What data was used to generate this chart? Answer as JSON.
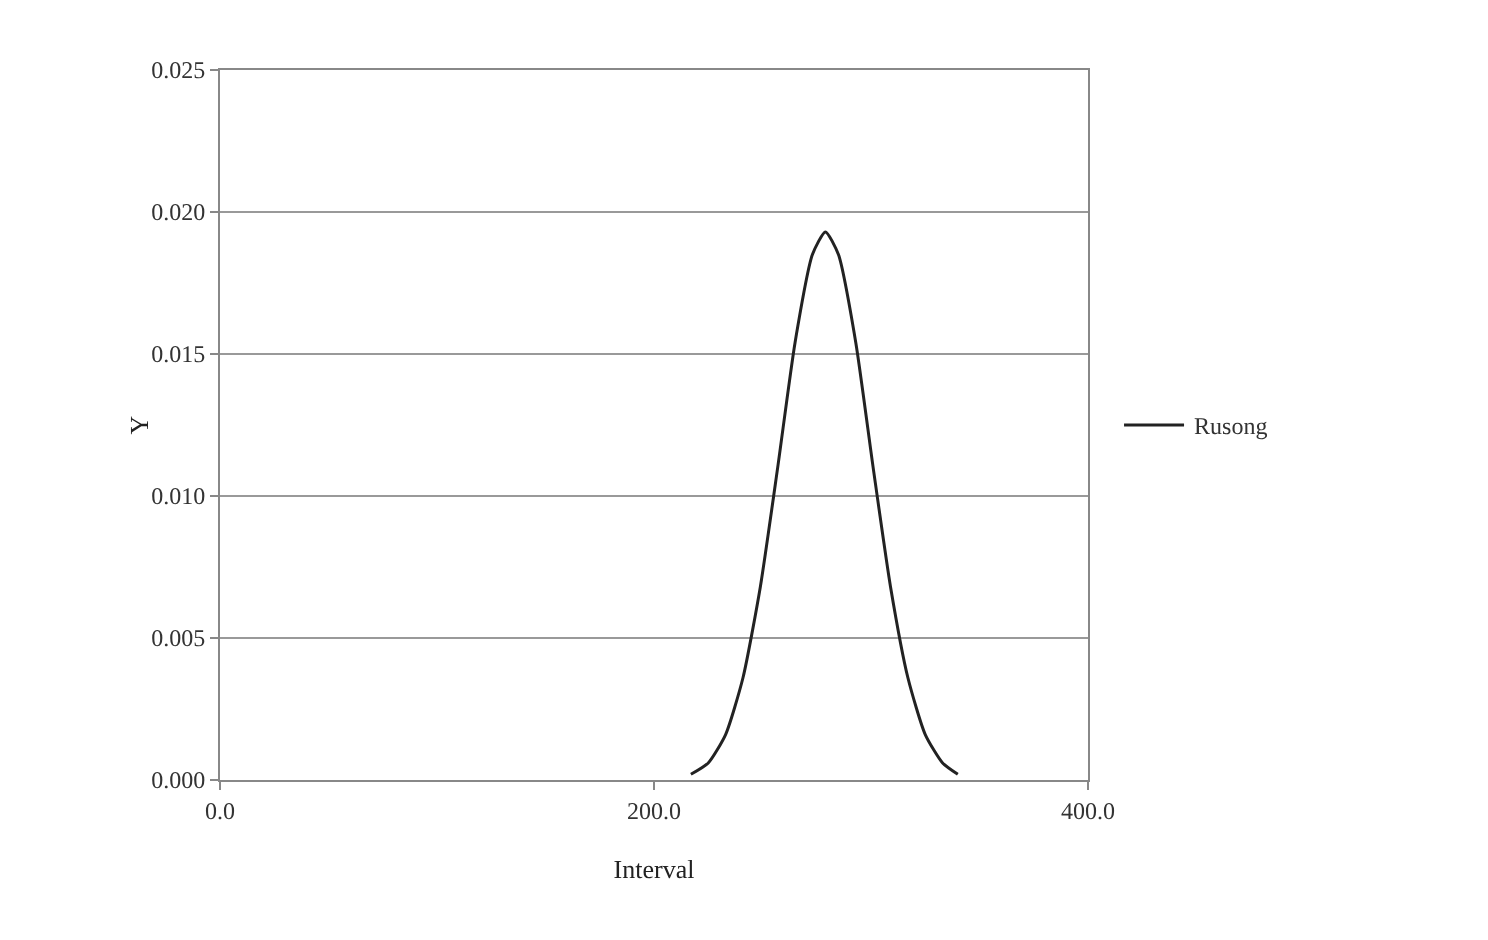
{
  "chart_data": {
    "type": "line",
    "xlabel": "Interval",
    "ylabel": "Y",
    "x": [
      217,
      225,
      233,
      241,
      249,
      257,
      265,
      273,
      279,
      285,
      293,
      301,
      309,
      317,
      325,
      333,
      340
    ],
    "series": [
      {
        "name": "Rusong",
        "color": "#222222",
        "values": [
          0.0002,
          0.0006,
          0.0016,
          0.0036,
          0.0068,
          0.011,
          0.0154,
          0.0185,
          0.0193,
          0.0185,
          0.0154,
          0.011,
          0.0068,
          0.0036,
          0.0016,
          0.0006,
          0.0002
        ]
      }
    ],
    "xlim": [
      0,
      400
    ],
    "xticks": [
      {
        "value": 0,
        "label": "0.0"
      },
      {
        "value": 200,
        "label": "200.0"
      },
      {
        "value": 400,
        "label": "400.0"
      }
    ],
    "ylim": [
      0,
      0.025
    ],
    "yticks": [
      {
        "value": 0,
        "label": "0.000"
      },
      {
        "value": 0.005,
        "label": "0.005"
      },
      {
        "value": 0.01,
        "label": "0.010"
      },
      {
        "value": 0.015,
        "label": "0.015"
      },
      {
        "value": 0.02,
        "label": "0.020"
      },
      {
        "value": 0.025,
        "label": "0.025"
      }
    ],
    "grid": "y",
    "legend": "right",
    "marker": "none",
    "line_style": "solid"
  }
}
